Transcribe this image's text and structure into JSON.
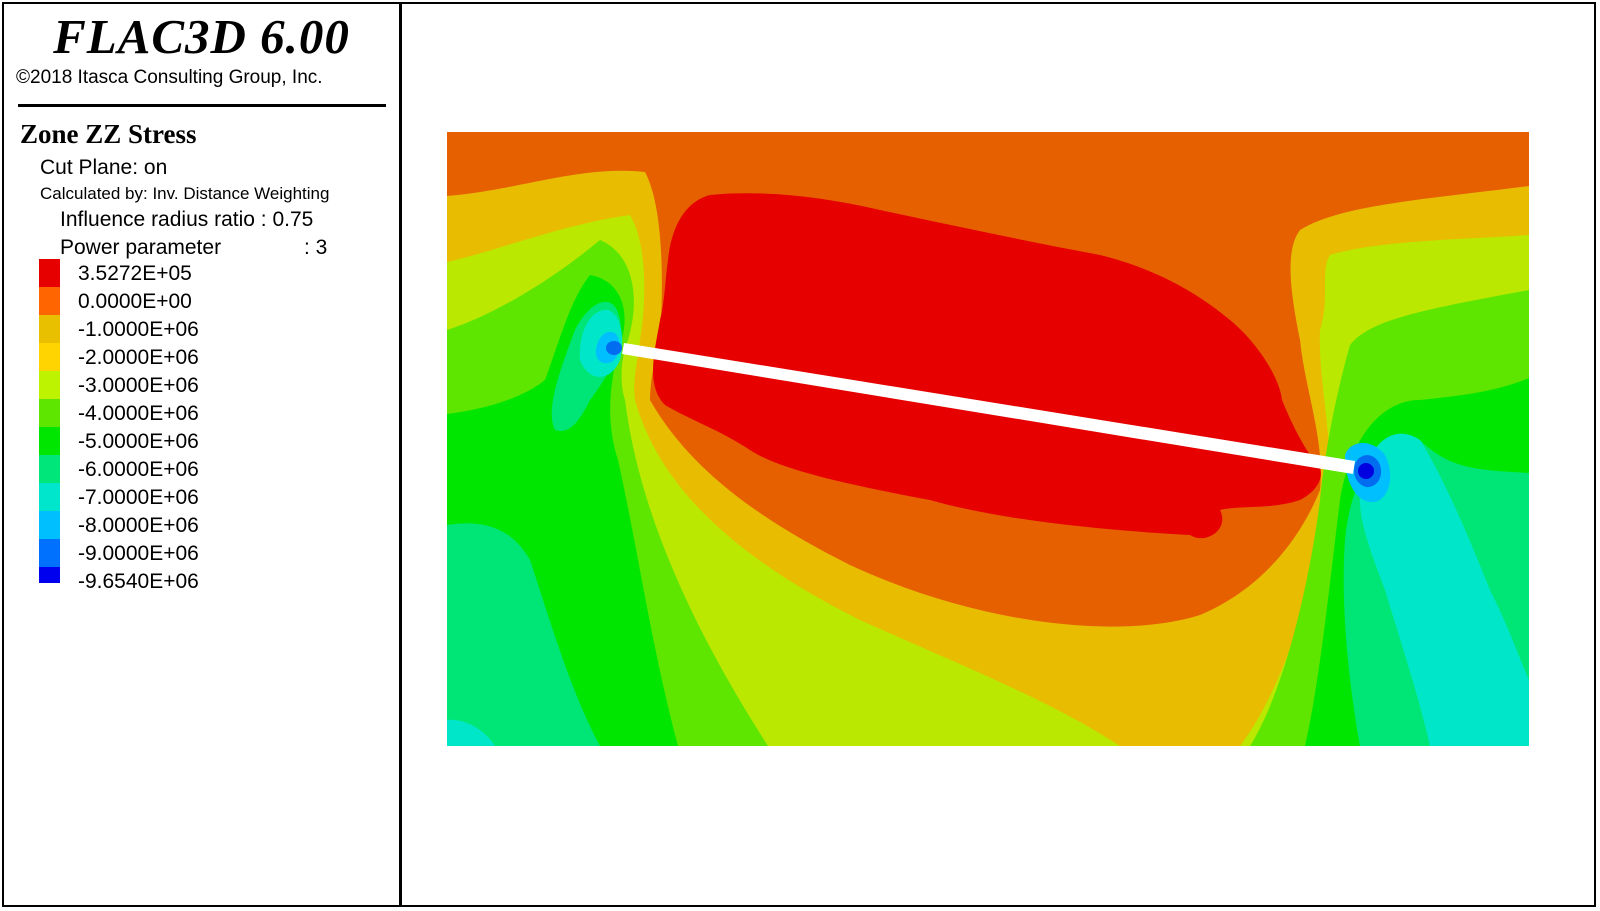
{
  "header": {
    "app_title": "FLAC3D 6.00",
    "copyright": "©2018 Itasca Consulting Group, Inc."
  },
  "legend": {
    "title": "Zone ZZ Stress",
    "cut_plane": "Cut Plane: on",
    "calculated_by": "Calculated by: Inv. Distance Weighting",
    "influence_radius": "Influence radius ratio : 0.75",
    "power_parameter_label": "Power parameter",
    "power_parameter_value": ": 3",
    "contours": [
      {
        "label": "3.5272E+05",
        "color": "#e60000"
      },
      {
        "label": "0.0000E+00",
        "color": "#ff6500"
      },
      {
        "label": "-1.0000E+06",
        "color": "#e8c000"
      },
      {
        "label": "-2.0000E+06",
        "color": "#ffd400"
      },
      {
        "label": "-3.0000E+06",
        "color": "#bdf200"
      },
      {
        "label": "-4.0000E+06",
        "color": "#5ee600"
      },
      {
        "label": "-5.0000E+06",
        "color": "#00e600"
      },
      {
        "label": "-6.0000E+06",
        "color": "#00e67a"
      },
      {
        "label": "-7.0000E+06",
        "color": "#00e6cc"
      },
      {
        "label": "-8.0000E+06",
        "color": "#00bfff"
      },
      {
        "label": "-9.0000E+06",
        "color": "#0070ff"
      },
      {
        "label": "-9.6540E+06",
        "color": "#0000ee"
      }
    ]
  },
  "colors": {
    "red": "#e60000",
    "orange": "#e66000",
    "gold": "#e8bc00",
    "yellowgreen": "#bbe800",
    "lightgreen": "#5ee600",
    "green": "#00e600",
    "seagreen": "#00e676",
    "teal": "#00e6c8",
    "sky": "#00bfff",
    "blue": "#006cf0",
    "deepblue": "#0000e0",
    "crack": "#ffffff"
  }
}
